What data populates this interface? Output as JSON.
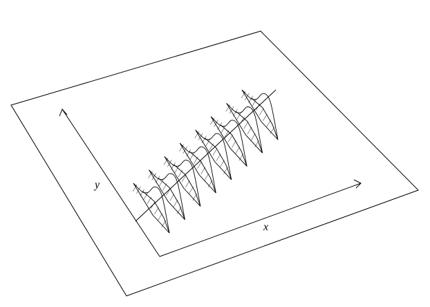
{
  "diagram": {
    "axes": {
      "x_label": "x",
      "y_label": "y"
    },
    "line_color": "#000000",
    "background_color": "#ffffff",
    "profile_count": 8
  }
}
